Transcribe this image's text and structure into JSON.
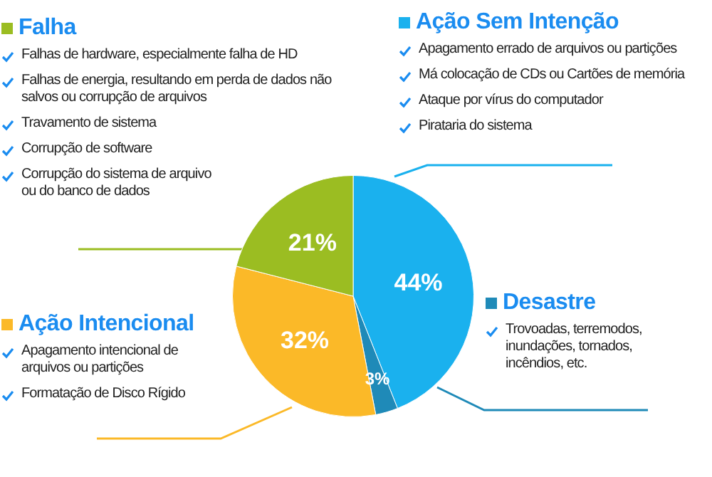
{
  "chart_data": {
    "type": "pie",
    "categories": [
      "Ação Sem Intenção",
      "Desastre",
      "Ação Intencional",
      "Falha"
    ],
    "values": [
      44,
      3,
      32,
      21
    ],
    "value_labels": [
      "44%",
      "3%",
      "32%",
      "21%"
    ],
    "colors": [
      "#1ab1ee",
      "#1f8ab8",
      "#fbb928",
      "#9bbd22"
    ],
    "legend": "top",
    "annotations": [
      "Apagamento errado de arquivos ou partições",
      "Má colocação de CDs ou Cartões de memória",
      "Ataque por vírus do computador",
      "Pirataria do sistema",
      "Trovoadas, terremodos, inundações, tornados, incêndios, etc.",
      "Apagamento intencional de arquivos ou partições",
      "Formatação de Disco Rígido",
      "Falhas de hardware, especialmente falha de HD",
      "Falhas de energia, resultando em perda de dados não salvos ou corrupção de arquivos",
      "Travamento de sistema",
      "Corrupção de software",
      "Corrupção do sistema de arquivo ou do banco de dados"
    ]
  }
}
